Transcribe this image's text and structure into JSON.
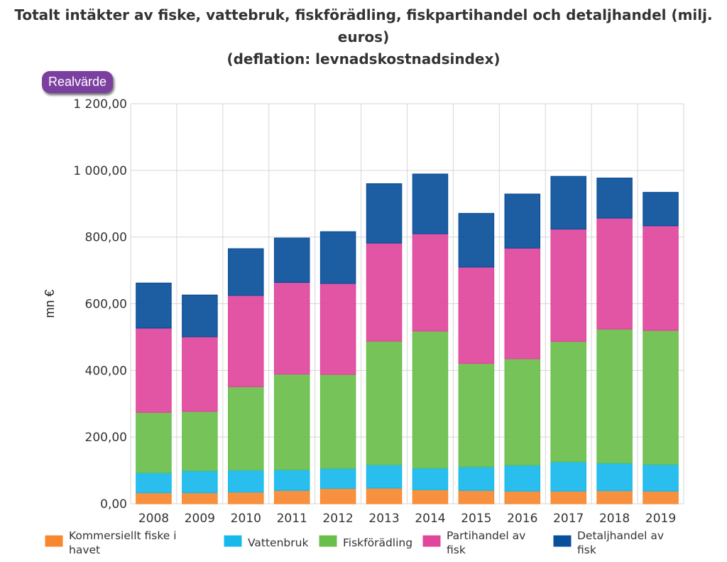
{
  "title": {
    "line1": "Totalt intäkter av fiske, vattebruk, fiskförädling, fiskpartihandel och detaljhandel (milj. euros)",
    "line2": "(deflation: levnadskostnadsindex)"
  },
  "toggle": {
    "label": "Realvärde"
  },
  "colors": {
    "commercial": "#f7882f",
    "aquaculture": "#17b9ec",
    "processing": "#6abf4b",
    "wholesale": "#e0469c",
    "retail": "#0a4f9a",
    "grid": "#d6d6d6"
  },
  "chart_data": {
    "type": "bar",
    "stacked": true,
    "title": "Totalt intäkter av fiske, vattebruk, fiskförädling, fiskpartihandel och detaljhandel (milj. euros) (deflation: levnadskostnadsindex)",
    "ylabel": "mn €",
    "xlabel": "",
    "ylim": [
      0,
      1200
    ],
    "yticks": [
      "0,00",
      "200,00",
      "400,00",
      "600,00",
      "800,00",
      "1 000,00",
      "1 200,00"
    ],
    "grid": true,
    "legend_position": "bottom",
    "categories": [
      "2008",
      "2009",
      "2010",
      "2011",
      "2012",
      "2013",
      "2014",
      "2015",
      "2016",
      "2017",
      "2018",
      "2019"
    ],
    "series": [
      {
        "name": "Kommersiellt fiske i havet",
        "legend_lines": [
          "Kommersiellt fiske i",
          "havet"
        ],
        "color_key": "commercial",
        "values": [
          33,
          33,
          35,
          40,
          46,
          47,
          42,
          40,
          38,
          38,
          39,
          38
        ]
      },
      {
        "name": "Vattenbruk",
        "legend_lines": [
          "Vattenbruk"
        ],
        "color_key": "aquaculture",
        "values": [
          60,
          66,
          66,
          62,
          60,
          70,
          65,
          71,
          78,
          88,
          83,
          80
        ]
      },
      {
        "name": "Fiskförädling",
        "legend_lines": [
          "Fiskförädling"
        ],
        "color_key": "processing",
        "values": [
          181,
          178,
          250,
          287,
          282,
          371,
          411,
          310,
          319,
          361,
          402,
          402
        ]
      },
      {
        "name": "Partihandel av fisk",
        "legend_lines": [
          "Partihandel av",
          "fisk"
        ],
        "color_key": "wholesale",
        "values": [
          253,
          224,
          274,
          275,
          273,
          294,
          292,
          289,
          332,
          337,
          333,
          314
        ]
      },
      {
        "name": "Detaljhandel av fisk",
        "legend_lines": [
          "Detaljhandel av",
          "fisk"
        ],
        "color_key": "retail",
        "values": [
          135,
          125,
          140,
          133,
          155,
          178,
          179,
          161,
          162,
          158,
          120,
          100
        ]
      }
    ]
  }
}
